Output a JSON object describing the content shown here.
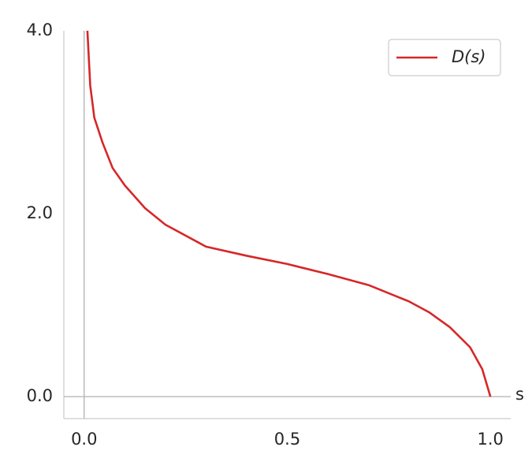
{
  "chart_data": {
    "type": "line",
    "x_axis_label": "s",
    "x": [
      0.008,
      0.015,
      0.025,
      0.045,
      0.07,
      0.1,
      0.15,
      0.2,
      0.3,
      0.4,
      0.5,
      0.6,
      0.7,
      0.8,
      0.85,
      0.9,
      0.95,
      0.98,
      1.0
    ],
    "series": [
      {
        "name": "D(s)",
        "color": "#d62728",
        "values": [
          4.0,
          3.4,
          3.05,
          2.78,
          2.5,
          2.31,
          2.06,
          1.88,
          1.64,
          1.54,
          1.45,
          1.34,
          1.22,
          1.04,
          0.92,
          0.76,
          0.54,
          0.3,
          0.0
        ]
      }
    ],
    "xlim": [
      -0.05,
      1.05
    ],
    "ylim": [
      -0.24,
      4.0
    ],
    "xticks": [
      {
        "value": 0,
        "label": "0.0"
      },
      {
        "value": 0.5,
        "label": "0.5"
      },
      {
        "value": 1,
        "label": "1.0"
      }
    ],
    "yticks": [
      {
        "value": 0,
        "label": "0.0"
      },
      {
        "value": 2,
        "label": "2.0"
      },
      {
        "value": 4,
        "label": "4.0"
      }
    ],
    "legend": "upper right"
  }
}
